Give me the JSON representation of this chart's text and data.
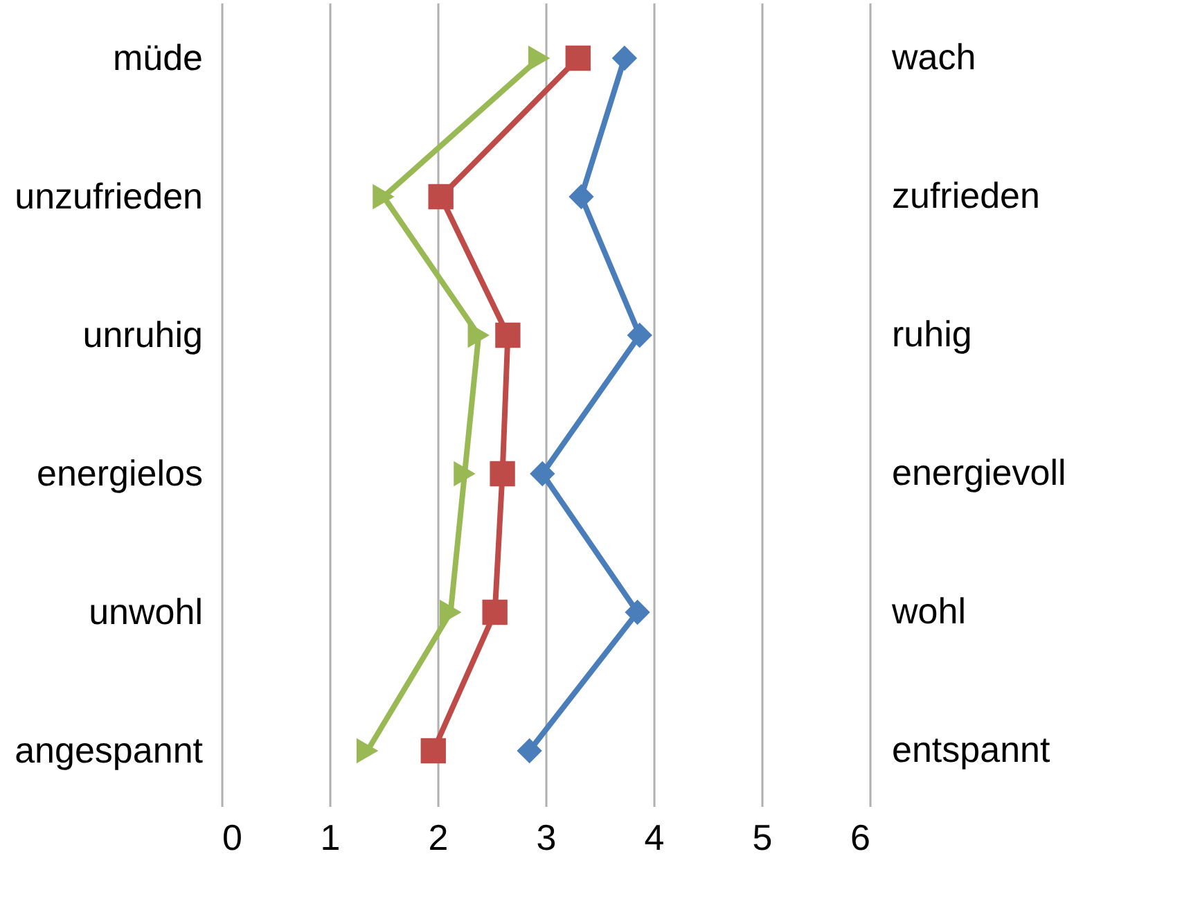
{
  "chart_data": {
    "type": "line",
    "orientation": "horizontal",
    "categories": [
      "müde",
      "unzufrieden",
      "unruhig",
      "energielos",
      "unwohl",
      "angespannt"
    ],
    "y2_categories": [
      "wach",
      "zufrieden",
      "ruhig",
      "energievoll",
      "wohl",
      "entspannt"
    ],
    "series": [
      {
        "color": "#4a7ebb",
        "marker": "diamond",
        "values": [
          3.73,
          3.33,
          3.87,
          2.97,
          3.85,
          2.85
        ]
      },
      {
        "color": "#be4b48",
        "marker": "square",
        "values": [
          3.3,
          2.03,
          2.65,
          2.6,
          2.53,
          1.96
        ]
      },
      {
        "color": "#98b954",
        "marker": "triangle",
        "values": [
          2.94,
          1.5,
          2.38,
          2.25,
          2.12,
          1.35
        ]
      }
    ],
    "xlim": [
      0,
      6
    ],
    "xticks": [
      0,
      1,
      2,
      3,
      4,
      5,
      6
    ],
    "grid": "x"
  }
}
